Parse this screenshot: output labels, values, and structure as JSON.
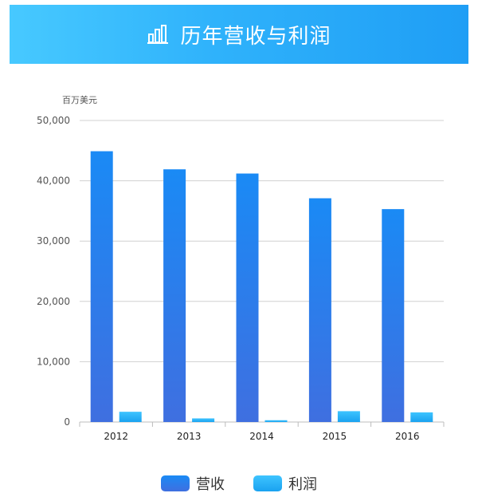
{
  "header": {
    "title": "历年营收与利润",
    "icon": "bar-chart-icon"
  },
  "colors": {
    "revenue": "#2f86ea",
    "profit": "#1fb4f6",
    "grid": "#d0d0d0",
    "axis_text": "#555555"
  },
  "chart_data": {
    "type": "bar",
    "title": "",
    "ylabel": "百万美元",
    "xlabel": "",
    "ylim": [
      0,
      50000
    ],
    "yticks": [
      0,
      10000,
      20000,
      30000,
      40000,
      50000
    ],
    "ytick_labels": [
      "0",
      "10,000",
      "20,000",
      "30,000",
      "40,000",
      "50,000"
    ],
    "grid": true,
    "legend_position": "bottom-center",
    "categories": [
      "2012",
      "2013",
      "2014",
      "2015",
      "2016"
    ],
    "series": [
      {
        "name": "营收",
        "values": [
          44900,
          41900,
          41200,
          37100,
          35300
        ]
      },
      {
        "name": "利润",
        "values": [
          1700,
          600,
          300,
          1800,
          1600
        ]
      }
    ]
  }
}
